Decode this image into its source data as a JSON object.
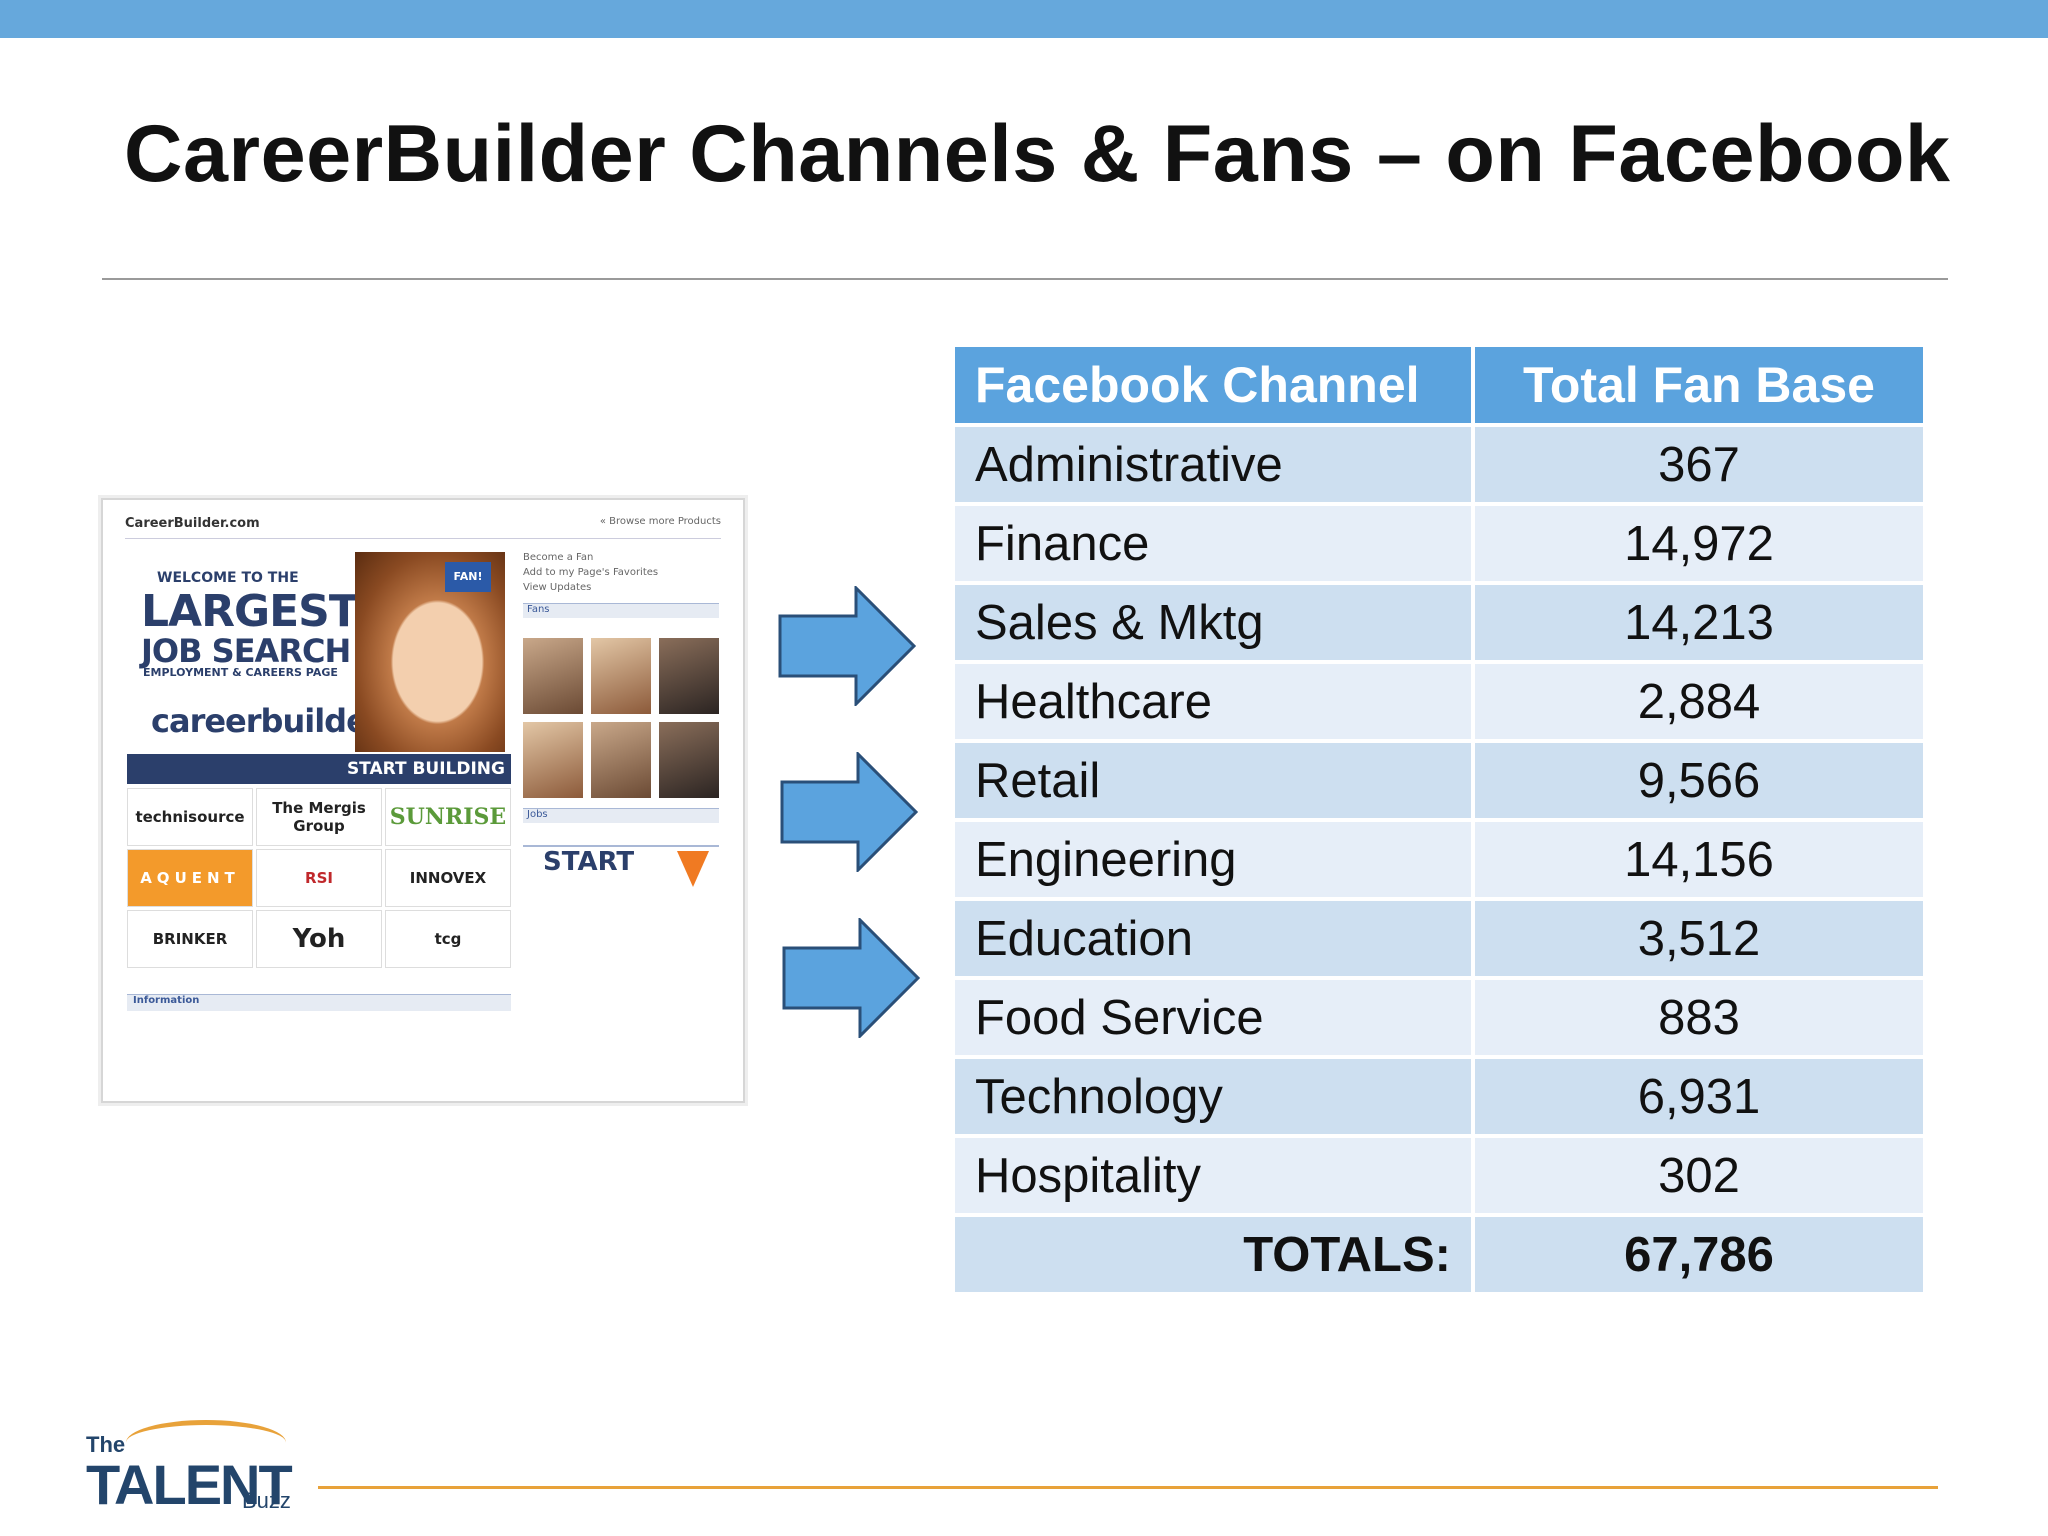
{
  "slide": {
    "title": "CareerBuilder Channels & Fans – on Facebook"
  },
  "screenshot": {
    "header": "CareerBuilder.com",
    "browse_link": "« Browse more Products",
    "banner": {
      "welcome": "WELCOME TO THE",
      "largest": "LARGEST",
      "job_search": "JOB SEARCH",
      "employment": "EMPLOYMENT & CAREERS PAGE",
      "logo_text": "careerbuilder.com",
      "fan_badge": "FAN!",
      "start_building": "START BUILDING"
    },
    "logos": [
      "technisource",
      "The Mergis Group",
      "SUNRISE",
      "AQUENT",
      "RSI",
      "INNOVEX",
      "BRINKER",
      "Yoh",
      "tcg"
    ],
    "side_links": [
      "Become a Fan",
      "Add to my Page's Favorites",
      "View Updates"
    ],
    "fans_header": "Fans",
    "jobs_header": "Jobs",
    "start_searching": "START",
    "info_header": "Information"
  },
  "table": {
    "headers": [
      "Facebook Channel",
      "Total Fan Base"
    ],
    "rows": [
      {
        "channel": "Administrative",
        "fans": "367"
      },
      {
        "channel": "Finance",
        "fans": "14,972"
      },
      {
        "channel": "Sales & Mktg",
        "fans": "14,213"
      },
      {
        "channel": "Healthcare",
        "fans": "2,884"
      },
      {
        "channel": "Retail",
        "fans": "9,566"
      },
      {
        "channel": "Engineering",
        "fans": "14,156"
      },
      {
        "channel": "Education",
        "fans": "3,512"
      },
      {
        "channel": "Food Service",
        "fans": "883"
      },
      {
        "channel": "Technology",
        "fans": "6,931"
      },
      {
        "channel": "Hospitality",
        "fans": "302"
      }
    ],
    "total_label": "TOTALS:",
    "total_value": "67,786"
  },
  "footer": {
    "logo_the": "The",
    "logo_talent": "TALENT",
    "logo_buzz": "Buzz"
  },
  "colors": {
    "top_bar": "#66a8dc",
    "table_header": "#5ba3de",
    "row_dark": "#cddff0",
    "row_light": "#e6eef8",
    "arrow": "#5ba3de",
    "accent_orange": "#e8a23a"
  }
}
